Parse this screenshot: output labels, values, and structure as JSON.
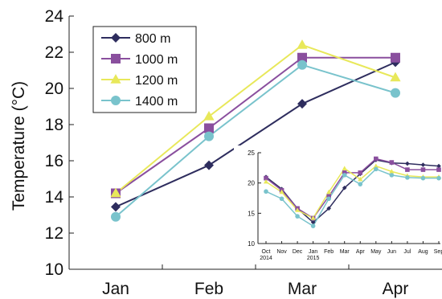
{
  "chart_data": [
    {
      "type": "line",
      "ylabel": "Temperature (°C)",
      "xlabel": "",
      "categories": [
        "Jan",
        "Feb",
        "Mar",
        "Apr"
      ],
      "ylim": [
        10,
        24
      ],
      "yticks": [
        10,
        12,
        14,
        16,
        18,
        20,
        22,
        24
      ],
      "legend_position": "top-left",
      "grid": false,
      "series": [
        {
          "name": "800 m",
          "color": "#2e2d5e",
          "marker": "diamond",
          "values": [
            13.45,
            15.75,
            19.15,
            21.45
          ]
        },
        {
          "name": "1000 m",
          "color": "#8a4f9e",
          "marker": "square",
          "values": [
            14.2,
            17.8,
            21.7,
            21.7
          ]
        },
        {
          "name": "1200 m",
          "color": "#e8e85a",
          "marker": "triangle",
          "values": [
            14.2,
            18.45,
            22.4,
            20.6
          ]
        },
        {
          "name": "1400 m",
          "color": "#79c3cc",
          "marker": "circle",
          "values": [
            12.9,
            17.35,
            21.3,
            19.75
          ]
        }
      ]
    },
    {
      "type": "line",
      "inset": true,
      "categories": [
        "Oct",
        "Nov",
        "Dec",
        "Jan",
        "Feb",
        "Mar",
        "Apr",
        "May",
        "Jun",
        "Jul",
        "Aug",
        "Sep"
      ],
      "year_labels": {
        "Oct": "2014",
        "Jan": "2015"
      },
      "ylim": [
        10,
        25
      ],
      "yticks": [
        10,
        15,
        20,
        25
      ],
      "grid": false,
      "series": [
        {
          "name": "800 m",
          "color": "#2e2d5e",
          "marker": "diamond",
          "values": [
            21.0,
            19.0,
            15.8,
            13.5,
            15.8,
            19.2,
            21.5,
            23.8,
            23.3,
            23.2,
            23.0,
            22.8
          ]
        },
        {
          "name": "1000 m",
          "color": "#8a4f9e",
          "marker": "square",
          "values": [
            20.8,
            18.8,
            15.8,
            14.2,
            17.8,
            21.7,
            21.7,
            24.0,
            23.4,
            22.2,
            22.2,
            22.2
          ]
        },
        {
          "name": "1200 m",
          "color": "#e8e85a",
          "marker": "triangle",
          "values": [
            20.2,
            18.5,
            15.5,
            14.2,
            18.5,
            22.4,
            20.6,
            22.8,
            21.9,
            21.2,
            21.0,
            21.0
          ]
        },
        {
          "name": "1400 m",
          "color": "#79c3cc",
          "marker": "circle",
          "values": [
            18.6,
            17.4,
            14.5,
            12.9,
            17.4,
            21.3,
            19.8,
            22.3,
            21.3,
            20.9,
            20.8,
            20.8
          ]
        }
      ]
    }
  ]
}
